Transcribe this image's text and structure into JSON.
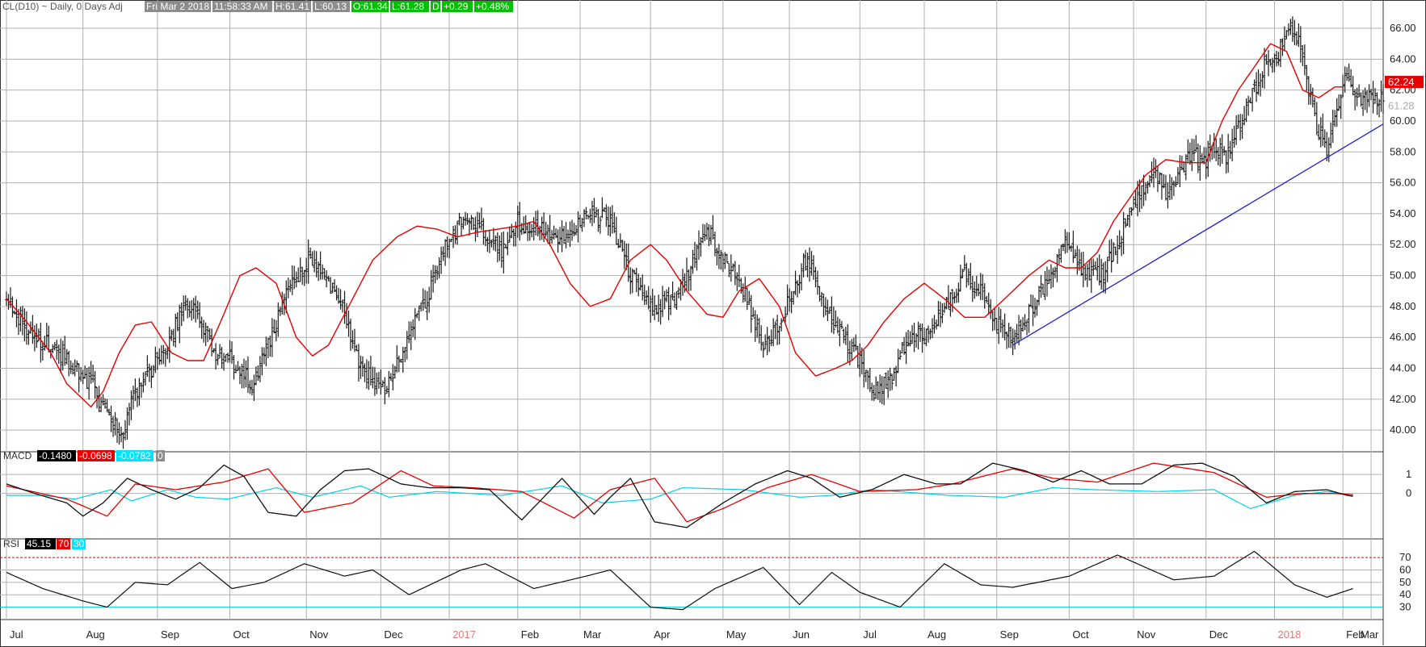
{
  "header": {
    "symbol": "CL(D10)",
    "rest": "~ Daily, 0 Days Adj",
    "datetime": "Fri Mar 2 2018",
    "time": "11:58:33 AM",
    "high": "H:61.41",
    "low": "L:60.13",
    "open": "O:61.34",
    "last": "L:61.28",
    "d": "D",
    "change": "+0.29",
    "pct": "+0.48%"
  },
  "colors": {
    "bars": "#1a1a1a",
    "ma": "#e60000",
    "trendline": "#1f1fc9",
    "macd": "#111111",
    "signal": "#e60000",
    "hist": "#00d2e6",
    "rsi": "#111111",
    "rsi_upper": "#e60000",
    "rsi_lower": "#00c8c8",
    "grid": "#b0b0b0",
    "green_box": "#00c000",
    "gray_box": "#8c8c8c"
  },
  "price_panel": {
    "ticks": [
      "40.00",
      "42.00",
      "44.00",
      "46.00",
      "48.00",
      "50.00",
      "52.00",
      "54.00",
      "56.00",
      "58.00",
      "60.00",
      "62.00",
      "64.00",
      "66.00"
    ],
    "ma_label": "62.24",
    "last_label": "61.28"
  },
  "macd_panel": {
    "label": "MACD",
    "macd_value": "-0.1480",
    "signal_value": "-0.0698",
    "hist_value": "-0.0782",
    "zero_box": "0",
    "ticks": [
      "1",
      "0"
    ]
  },
  "rsi_panel": {
    "label": "RSI",
    "value": "45.15",
    "upper": "70",
    "lower": "30",
    "ticks": [
      "70",
      "60",
      "50",
      "40",
      "30"
    ]
  },
  "months": [
    "Jul",
    "Aug",
    "Sep",
    "Oct",
    "Nov",
    "Dec",
    "2017",
    "Feb",
    "Mar",
    "Apr",
    "May",
    "Jun",
    "Jul",
    "Aug",
    "Sep",
    "Oct",
    "Nov",
    "Dec",
    "2018",
    "Feb",
    "Mar"
  ],
  "chart_data": {
    "type": "line",
    "x": [
      "Jul",
      "Aug",
      "Sep",
      "Oct",
      "Nov",
      "Dec",
      "2017",
      "Feb",
      "Mar",
      "Apr",
      "May",
      "Jun",
      "Jul",
      "Aug",
      "Sep",
      "Oct",
      "Nov",
      "Dec",
      "2018",
      "Feb",
      "Mar"
    ],
    "price_anchor_x": [
      0,
      12,
      22,
      34,
      42,
      50,
      58,
      62,
      72,
      82,
      88,
      94,
      104,
      112,
      122,
      130,
      140,
      150,
      156,
      168,
      176,
      188,
      200,
      210,
      218,
      226,
      236,
      246,
      254,
      264,
      276,
      288,
      300,
      310,
      320,
      332,
      340,
      348,
      358,
      366,
      376,
      386,
      398,
      408,
      416,
      426,
      432,
      440,
      448,
      458,
      466,
      476,
      484,
      492,
      500,
      512,
      518,
      526,
      534,
      544,
      550,
      556,
      564,
      570,
      576,
      584,
      590,
      594,
      600,
      606,
      614,
      620,
      626,
      632,
      638,
      644,
      650,
      656,
      661,
      666,
      669
    ],
    "price_anchor_y": [
      48.6,
      46,
      45.5,
      44,
      43,
      41,
      39.8,
      42,
      44,
      46,
      48.2,
      47.5,
      45,
      44.5,
      43,
      45.5,
      49,
      51,
      50.5,
      47.5,
      44,
      42.8,
      46,
      49,
      52,
      53.5,
      53,
      51.5,
      53.5,
      53,
      52.5,
      54,
      53.5,
      50,
      48,
      48.5,
      50.5,
      53,
      51,
      49,
      45.5,
      47.5,
      51.3,
      47.5,
      46,
      44,
      42.5,
      43.5,
      46,
      46.5,
      48,
      50,
      49,
      47,
      46,
      48.5,
      50,
      52,
      50.5,
      50,
      51.5,
      53.5,
      55.5,
      57,
      55.5,
      57,
      58,
      57,
      58.5,
      57.8,
      60,
      62,
      64,
      64.5,
      66,
      64.5,
      60,
      58,
      61,
      63,
      61.5
    ],
    "ma_anchor_x": [
      0,
      10,
      22,
      30,
      38,
      42,
      48,
      56,
      64,
      72,
      82,
      90,
      98,
      108,
      116,
      124,
      134,
      144,
      152,
      160,
      170,
      182,
      194,
      204,
      214,
      224,
      234,
      244,
      254,
      262,
      270,
      280,
      290,
      300,
      310,
      320,
      328,
      338,
      348,
      356,
      364,
      374,
      384,
      392,
      402,
      412,
      420,
      428,
      436,
      446,
      456,
      466,
      476,
      486,
      496,
      508,
      518,
      526,
      534,
      542,
      550,
      558,
      566,
      576,
      586,
      596,
      604,
      612,
      620,
      628,
      636,
      644,
      652,
      660,
      664
    ],
    "ma_anchor_y": [
      48.5,
      47,
      45,
      43,
      42,
      41.5,
      42.5,
      45,
      46.8,
      47,
      45,
      44.5,
      44.5,
      47.5,
      50,
      50.5,
      49.5,
      46,
      44.8,
      45.5,
      48,
      51,
      52.5,
      53.2,
      53,
      52.5,
      52.8,
      53,
      53.2,
      53.5,
      52,
      49.5,
      48,
      48.5,
      51,
      52,
      51,
      49,
      47.5,
      47.3,
      49,
      49.8,
      48,
      45,
      43.5,
      44,
      44.5,
      45.5,
      47,
      48.5,
      49.5,
      48.5,
      47.3,
      47.3,
      48.5,
      50,
      51,
      50.5,
      50.5,
      51.5,
      53.5,
      55,
      56.5,
      57.5,
      57.3,
      57.3,
      60,
      62,
      63.5,
      65,
      64.5,
      62,
      61.5,
      62.2,
      62.2
    ],
    "trendline": {
      "x": [
        500,
        684
      ],
      "y": [
        45.5,
        59.8
      ]
    },
    "macd_anchor_x": [
      0,
      14,
      30,
      38,
      48,
      60,
      72,
      84,
      96,
      108,
      118,
      130,
      144,
      156,
      168,
      180,
      196,
      210,
      226,
      240,
      256,
      276,
      292,
      300,
      310,
      322,
      338,
      356,
      372,
      388,
      400,
      414,
      430,
      446,
      462,
      474,
      490,
      506,
      520,
      534,
      548,
      564,
      580,
      594,
      610,
      626,
      640,
      656,
      666,
      669
    ],
    "macd_anchor_y": [
      0.5,
      0,
      -0.5,
      -1.2,
      -0.5,
      0.8,
      0.2,
      -0.3,
      0.3,
      1.5,
      0.9,
      -1,
      -1.2,
      0.2,
      1.2,
      1.3,
      0.5,
      0.3,
      0.3,
      0.2,
      -1.4,
      0.8,
      -1.1,
      -0.2,
      0.8,
      -1.5,
      -1.8,
      -0.5,
      0.5,
      1.2,
      0.8,
      -0.2,
      0.2,
      1,
      0.5,
      0.5,
      1.6,
      1.2,
      0.6,
      1.2,
      0.5,
      0.5,
      1.5,
      1.6,
      0.9,
      -0.5,
      0.1,
      0.2,
      -0.1,
      -0.15
    ],
    "signal_anchor_x": [
      0,
      30,
      50,
      64,
      84,
      108,
      130,
      148,
      172,
      196,
      212,
      232,
      256,
      282,
      300,
      322,
      338,
      356,
      378,
      400,
      424,
      452,
      470,
      500,
      520,
      542,
      570,
      600,
      626,
      644,
      660,
      669
    ],
    "signal_anchor_y": [
      0.4,
      -0.3,
      -1.2,
      0.5,
      0.2,
      0.6,
      1.3,
      -1,
      -0.5,
      1.2,
      0.4,
      0.3,
      0.1,
      -1.3,
      0.2,
      0.8,
      -1.5,
      -0.8,
      0.3,
      1,
      0.1,
      0.2,
      0.5,
      1.3,
      0.8,
      0.6,
      1.6,
      1.1,
      -0.2,
      0,
      0,
      -0.07
    ],
    "hist_anchor_x": [
      0,
      18,
      34,
      52,
      62,
      80,
      94,
      110,
      134,
      152,
      176,
      190,
      214,
      246,
      276,
      296,
      320,
      336,
      366,
      394,
      410,
      430,
      468,
      496,
      520,
      540,
      572,
      600,
      618,
      640,
      656,
      669
    ],
    "hist_anchor_y": [
      -0.1,
      -0.1,
      -0.3,
      0.2,
      -0.4,
      0.2,
      -0.2,
      -0.3,
      0.3,
      -0.2,
      0.4,
      -0.2,
      0.1,
      -0.1,
      0.4,
      -0.5,
      -0.3,
      0.3,
      0.2,
      -0.2,
      -0.1,
      0.2,
      -0.1,
      -0.2,
      0.3,
      0.2,
      0.1,
      0.2,
      -0.8,
      -0.1,
      0.1,
      -0.08
    ],
    "rsi_anchor_x": [
      0,
      18,
      38,
      50,
      64,
      80,
      96,
      112,
      128,
      148,
      168,
      182,
      200,
      226,
      238,
      262,
      288,
      300,
      320,
      336,
      352,
      376,
      394,
      410,
      424,
      444,
      466,
      484,
      500,
      528,
      552,
      580,
      600,
      620,
      640,
      656,
      669
    ],
    "rsi_anchor_y": [
      58,
      45,
      35,
      30,
      50,
      48,
      66,
      45,
      50,
      65,
      55,
      60,
      40,
      60,
      65,
      45,
      55,
      60,
      30,
      28,
      45,
      62,
      32,
      58,
      42,
      30,
      65,
      48,
      46,
      55,
      72,
      52,
      55,
      75,
      48,
      38,
      45
    ],
    "price_ylim": [
      38.6,
      67.2
    ],
    "macd_ylim": [
      -2.4,
      2.2
    ],
    "rsi_ylim": [
      20,
      85
    ],
    "rsi_levels": [
      70,
      30
    ],
    "month_starts": [
      0,
      38,
      75,
      111,
      149,
      186,
      220,
      254,
      285,
      320,
      356,
      389,
      424,
      456,
      492,
      528,
      560,
      596,
      630,
      664,
      678
    ],
    "n_bars": 685
  }
}
